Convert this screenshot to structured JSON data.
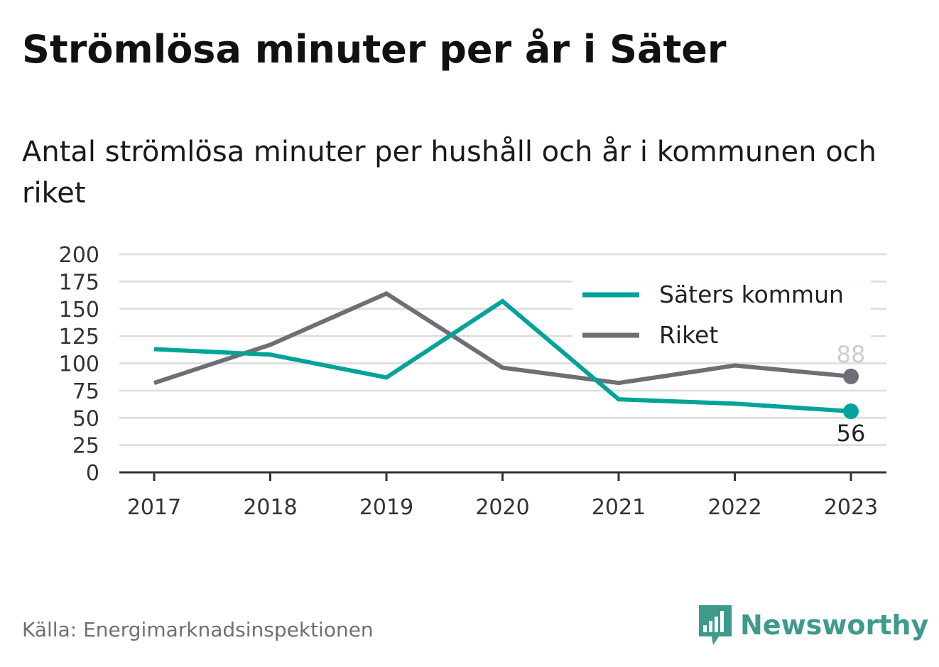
{
  "title": "Strömlösa minuter per år i Säter",
  "subtitle": "Antal strömlösa minuter per hushåll och år i kommunen och riket",
  "source": "Källa: Energimarknadsinspektionen",
  "brand": {
    "name": "Newsworthy",
    "icon": "newsworthy-logo-icon",
    "color": "#3e9b8b"
  },
  "chart_data": {
    "type": "line",
    "x": [
      "2017",
      "2018",
      "2019",
      "2020",
      "2021",
      "2022",
      "2023"
    ],
    "ylim": [
      0,
      200
    ],
    "yticks": [
      0,
      25,
      50,
      75,
      100,
      125,
      150,
      175,
      200
    ],
    "grid": true,
    "legend_position": "top-right",
    "series": [
      {
        "name": "Säters kommun",
        "color": "#00a398",
        "values": [
          113,
          108,
          87,
          157,
          67,
          63,
          56
        ],
        "end_label": "56"
      },
      {
        "name": "Riket",
        "color": "#6e6e76",
        "values": [
          82,
          117,
          164,
          96,
          82,
          98,
          88
        ],
        "end_label": "88"
      }
    ]
  }
}
